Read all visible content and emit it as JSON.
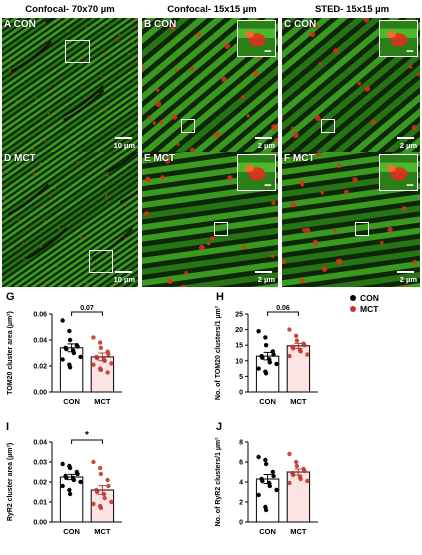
{
  "headers": [
    "Confocal- 70x70 µm",
    "Confocal- 15x15 µm",
    "STED- 15x15 µm"
  ],
  "panels": [
    {
      "letter": "A",
      "group": "CON",
      "scalebar": "10 µm",
      "kind": "wide"
    },
    {
      "letter": "B",
      "group": "CON",
      "scalebar": "2 µm",
      "kind": "zoom"
    },
    {
      "letter": "C",
      "group": "CON",
      "scalebar": "2 µm",
      "kind": "sted"
    },
    {
      "letter": "D",
      "group": "MCT",
      "scalebar": "10 µm",
      "kind": "wide"
    },
    {
      "letter": "E",
      "group": "MCT",
      "scalebar": "2 µm",
      "kind": "zoom"
    },
    {
      "letter": "F",
      "group": "MCT",
      "scalebar": "2 µm",
      "kind": "sted"
    }
  ],
  "legend": [
    {
      "label": "CON",
      "color": "#000000"
    },
    {
      "label": "MCT",
      "color": "#c0392b"
    }
  ],
  "colors": {
    "con_dot": "#000000",
    "mct_dot": "#c0392b",
    "mct_bar_fill": "#fbe3e3",
    "mct_bar_stroke": "#e8b0b0",
    "green": "#3fbf22",
    "red": "#e0301c"
  },
  "chart_data": [
    {
      "panel": "G",
      "type": "bar",
      "ylabel": "TOM20 cluster area (µm²)",
      "categories": [
        "CON",
        "MCT"
      ],
      "values": [
        0.034,
        0.027
      ],
      "errors": [
        0.003,
        0.003
      ],
      "ylim": [
        0,
        0.06
      ],
      "yticks": [
        0.0,
        0.02,
        0.04,
        0.06
      ],
      "ytick_labels": [
        "0.00",
        "0.02",
        "0.04",
        "0.06"
      ],
      "significance": {
        "text": "0.07"
      },
      "points": [
        [
          0.055,
          0.047,
          0.04,
          0.036,
          0.035,
          0.034,
          0.033,
          0.032,
          0.03,
          0.027,
          0.025,
          0.021,
          0.019
        ],
        [
          0.042,
          0.038,
          0.034,
          0.031,
          0.029,
          0.027,
          0.026,
          0.025,
          0.024,
          0.022,
          0.021,
          0.018,
          0.017,
          0.015
        ]
      ]
    },
    {
      "panel": "H",
      "type": "bar",
      "ylabel": "No. of TOM20 clusters/1 µm²",
      "categories": [
        "CON",
        "MCT"
      ],
      "values": [
        11.5,
        14.8
      ],
      "errors": [
        1.2,
        0.8
      ],
      "ylim": [
        0,
        25
      ],
      "yticks": [
        0,
        5,
        10,
        15,
        20,
        25
      ],
      "ytick_labels": [
        "0",
        "5",
        "10",
        "15",
        "20",
        "25"
      ],
      "significance": {
        "text": "0.06"
      },
      "points": [
        [
          19.5,
          17.5,
          15.0,
          13.0,
          12.0,
          11.5,
          11.0,
          10.5,
          9.5,
          9.0,
          7.5,
          6.5,
          6.0
        ],
        [
          20.0,
          18.0,
          16.5,
          15.5,
          15.0,
          14.5,
          14.0,
          13.5,
          13.0,
          12.0,
          11.5
        ]
      ]
    },
    {
      "panel": "I",
      "type": "bar",
      "ylabel": "RyR2 cluster area (µm²)",
      "categories": [
        "CON",
        "MCT"
      ],
      "values": [
        0.0225,
        0.016
      ],
      "errors": [
        0.0013,
        0.0022
      ],
      "ylim": [
        0,
        0.04
      ],
      "yticks": [
        0.0,
        0.01,
        0.02,
        0.03,
        0.04
      ],
      "ytick_labels": [
        "0.00",
        "0.01",
        "0.02",
        "0.03",
        "0.04"
      ],
      "significance": {
        "text": "*"
      },
      "points": [
        [
          0.029,
          0.028,
          0.027,
          0.025,
          0.024,
          0.023,
          0.022,
          0.022,
          0.021,
          0.02,
          0.018,
          0.016,
          0.014
        ],
        [
          0.03,
          0.027,
          0.024,
          0.021,
          0.018,
          0.016,
          0.015,
          0.014,
          0.012,
          0.01,
          0.009,
          0.008,
          0.007
        ]
      ]
    },
    {
      "panel": "J",
      "type": "bar",
      "ylabel": "No. of RyR2 clusters/1 µm²",
      "categories": [
        "CON",
        "MCT"
      ],
      "values": [
        4.3,
        5.0
      ],
      "errors": [
        0.45,
        0.3
      ],
      "ylim": [
        0,
        8
      ],
      "yticks": [
        0,
        2,
        4,
        6,
        8
      ],
      "ytick_labels": [
        "0",
        "2",
        "4",
        "6",
        "8"
      ],
      "significance": null,
      "points": [
        [
          6.5,
          6.2,
          5.8,
          5.0,
          4.6,
          4.3,
          4.1,
          3.9,
          3.6,
          3.2,
          2.7,
          1.5,
          1.2
        ],
        [
          6.8,
          6.0,
          5.6,
          5.3,
          5.1,
          4.9,
          4.7,
          4.5,
          4.3,
          4.1,
          3.9
        ]
      ]
    }
  ]
}
